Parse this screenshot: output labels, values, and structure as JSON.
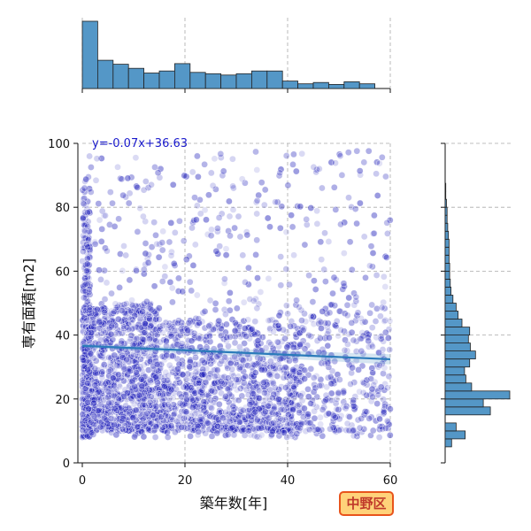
{
  "chart_data": {
    "type": "scatter",
    "title": "",
    "xlabel": "築年数[年]",
    "ylabel": "専有面積[m2]",
    "xlim": [
      0,
      60
    ],
    "ylim": [
      0,
      100
    ],
    "x_ticks": [
      "0",
      "20",
      "40",
      "60"
    ],
    "y_ticks": [
      "0",
      "20",
      "40",
      "60",
      "80",
      "100"
    ],
    "grid": true,
    "annotation": "y=-0.07x+36.63",
    "badge": "中野区",
    "regression": {
      "slope": -0.07,
      "intercept": 36.63
    },
    "point_color": "#2222bb",
    "bar_color": "#5497c7",
    "line_color": "#2b7bba",
    "x_hist": {
      "bin_edges": [
        0,
        3,
        6,
        9,
        12,
        15,
        18,
        21,
        24,
        27,
        30,
        33,
        36,
        39,
        42,
        45,
        48,
        51,
        54,
        57,
        60
      ],
      "relative": [
        1.0,
        0.42,
        0.36,
        0.3,
        0.23,
        0.26,
        0.37,
        0.24,
        0.22,
        0.2,
        0.22,
        0.26,
        0.26,
        0.11,
        0.07,
        0.09,
        0.06,
        0.1,
        0.07,
        0.0
      ]
    },
    "y_hist": {
      "bin_edges": [
        5,
        7.5,
        10,
        12.5,
        15,
        17.5,
        20,
        22.5,
        25,
        27.5,
        30,
        32.5,
        35,
        37.5,
        40,
        42.5,
        45,
        47.5,
        50,
        52.5,
        55,
        57.5,
        60,
        62.5,
        65,
        67.5,
        70,
        72.5,
        75,
        77.5,
        80,
        82.5,
        85,
        87.5,
        90,
        92.5,
        95,
        97.5,
        100
      ],
      "relative": [
        0.1,
        0.31,
        0.17,
        0.0,
        0.7,
        0.59,
        1.0,
        0.41,
        0.32,
        0.3,
        0.38,
        0.47,
        0.39,
        0.36,
        0.38,
        0.26,
        0.2,
        0.17,
        0.12,
        0.09,
        0.08,
        0.07,
        0.07,
        0.06,
        0.06,
        0.06,
        0.05,
        0.04,
        0.03,
        0.03,
        0.02,
        0.01,
        0.01,
        0.0,
        0.0,
        0.0,
        0.0,
        0.0
      ]
    },
    "scatter_clusters": [
      {
        "x_range": [
          0,
          1.5
        ],
        "y_range": [
          8,
          90
        ],
        "count": 260
      },
      {
        "x_range": [
          0,
          15
        ],
        "y_range": [
          10,
          50
        ],
        "count": 900
      },
      {
        "x_range": [
          15,
          42
        ],
        "y_range": [
          10,
          45
        ],
        "count": 900
      },
      {
        "x_range": [
          0,
          60
        ],
        "y_range": [
          8,
          98
        ],
        "count": 700
      },
      {
        "x_range": [
          42,
          60
        ],
        "y_range": [
          10,
          50
        ],
        "count": 250
      }
    ]
  }
}
